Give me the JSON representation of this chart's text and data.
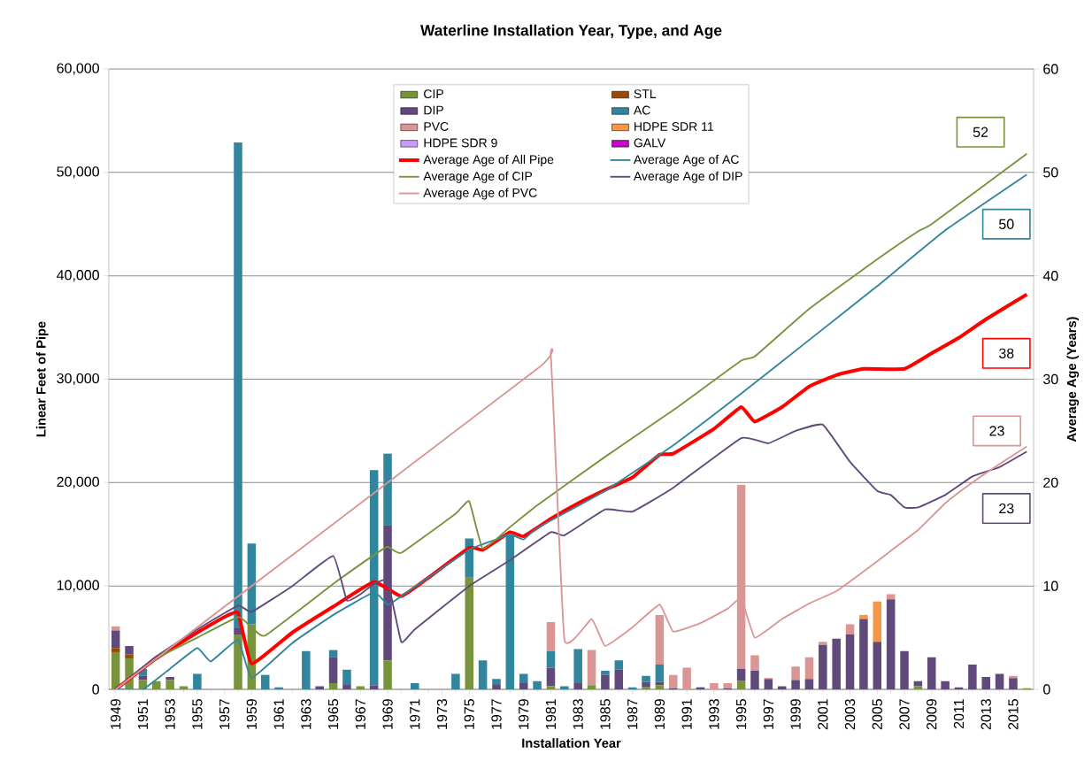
{
  "chart_data": {
    "type": "bar",
    "title": "Waterline Installation Year, Type, and Age",
    "xlabel": "Installation Year",
    "ylabel": "Linear Feet of Pipe",
    "y2label": "Average Age (Years)",
    "stacked": true,
    "grid": "y",
    "legend": "top",
    "x": [
      1949,
      1950,
      1951,
      1952,
      1953,
      1954,
      1955,
      1956,
      1957,
      1958,
      1959,
      1960,
      1961,
      1962,
      1963,
      1964,
      1965,
      1966,
      1967,
      1968,
      1969,
      1970,
      1971,
      1972,
      1973,
      1974,
      1975,
      1976,
      1977,
      1978,
      1979,
      1980,
      1981,
      1982,
      1983,
      1984,
      1985,
      1986,
      1987,
      1988,
      1989,
      1990,
      1991,
      1992,
      1993,
      1994,
      1995,
      1996,
      1997,
      1998,
      1999,
      2000,
      2001,
      2002,
      2003,
      2004,
      2005,
      2006,
      2007,
      2008,
      2009,
      2010,
      2011,
      2012,
      2013,
      2014,
      2015,
      2016
    ],
    "xlim": [
      1948.5,
      2016.5
    ],
    "xticks": [
      1949,
      1951,
      1953,
      1955,
      1957,
      1959,
      1961,
      1963,
      1965,
      1967,
      1969,
      1971,
      1973,
      1975,
      1977,
      1979,
      1981,
      1983,
      1985,
      1987,
      1989,
      1991,
      1993,
      1995,
      1997,
      1999,
      2001,
      2003,
      2005,
      2007,
      2009,
      2011,
      2013,
      2015
    ],
    "ylim": [
      0,
      60000
    ],
    "yticks": [
      0,
      {
        "value": 10000,
        "label": "10,000"
      },
      {
        "value": 20000,
        "label": "20,000"
      },
      {
        "value": 30000,
        "label": "30,000"
      },
      {
        "value": 40000,
        "label": "40,000"
      },
      {
        "value": 50000,
        "label": "50,000"
      },
      {
        "value": 60000,
        "label": "60,000"
      }
    ],
    "y2lim": [
      0,
      60
    ],
    "y2ticks": [
      0,
      10,
      20,
      30,
      40,
      50,
      60
    ],
    "series": [
      {
        "name": "CIP",
        "color": "#77933c",
        "values": [
          3600,
          3000,
          900,
          800,
          900,
          300,
          0,
          0,
          0,
          5300,
          6300,
          0,
          0,
          0,
          0,
          0,
          600,
          0,
          300,
          0,
          2800,
          0,
          0,
          0,
          0,
          0,
          10800,
          0,
          0,
          0,
          0,
          0,
          300,
          0,
          0,
          400,
          0,
          0,
          0,
          200,
          400,
          0,
          0,
          0,
          0,
          0,
          800,
          0,
          0,
          0,
          0,
          0,
          0,
          0,
          0,
          0,
          0,
          0,
          0,
          300,
          0,
          0,
          0,
          0,
          0,
          0,
          0,
          100
        ]
      },
      {
        "name": "STL",
        "color": "#984807",
        "values": [
          400,
          400,
          0,
          0,
          0,
          0,
          0,
          0,
          0,
          0,
          0,
          0,
          0,
          0,
          0,
          0,
          0,
          0,
          0,
          0,
          0,
          0,
          0,
          0,
          0,
          0,
          0,
          0,
          0,
          0,
          0,
          0,
          0,
          0,
          0,
          0,
          0,
          0,
          0,
          0,
          0,
          0,
          0,
          0,
          0,
          0,
          0,
          0,
          0,
          0,
          0,
          0,
          0,
          0,
          0,
          0,
          0,
          0,
          0,
          0,
          0,
          0,
          0,
          0,
          0,
          0,
          0,
          0
        ]
      },
      {
        "name": "DIP",
        "color": "#604a7b",
        "values": [
          1700,
          800,
          400,
          0,
          300,
          0,
          0,
          0,
          0,
          600,
          0,
          0,
          0,
          0,
          0,
          300,
          2500,
          500,
          0,
          400,
          13100,
          0,
          0,
          0,
          0,
          0,
          0,
          0,
          500,
          0,
          600,
          0,
          1800,
          0,
          600,
          0,
          1400,
          1900,
          0,
          500,
          300,
          100,
          0,
          200,
          0,
          100,
          1200,
          1800,
          1000,
          300,
          900,
          1000,
          4300,
          4900,
          5300,
          6800,
          4600,
          8700,
          3700,
          500,
          3100,
          800,
          200,
          2400,
          1200,
          1500,
          1100,
          0
        ]
      },
      {
        "name": "AC",
        "color": "#31859c",
        "values": [
          0,
          0,
          700,
          0,
          0,
          0,
          1500,
          0,
          0,
          47000,
          7800,
          1400,
          200,
          0,
          3700,
          0,
          700,
          1400,
          0,
          20800,
          6900,
          0,
          600,
          0,
          0,
          1500,
          3800,
          2800,
          500,
          14900,
          900,
          800,
          1600,
          300,
          3300,
          0,
          400,
          900,
          200,
          600,
          1700,
          0,
          0,
          0,
          0,
          0,
          0,
          0,
          0,
          0,
          0,
          0,
          0,
          0,
          0,
          0,
          0,
          0,
          0,
          0,
          0,
          0,
          0,
          0,
          0,
          0,
          0,
          0
        ]
      },
      {
        "name": "PVC",
        "color": "#d99694",
        "values": [
          400,
          0,
          0,
          0,
          0,
          0,
          0,
          0,
          0,
          0,
          0,
          0,
          0,
          0,
          0,
          0,
          0,
          0,
          0,
          0,
          0,
          0,
          0,
          0,
          0,
          0,
          0,
          0,
          0,
          0,
          0,
          0,
          2800,
          0,
          0,
          3400,
          0,
          0,
          0,
          0,
          4800,
          1300,
          2100,
          0,
          600,
          500,
          17800,
          1500,
          100,
          0,
          1300,
          2100,
          300,
          0,
          1000,
          0,
          0,
          500,
          0,
          0,
          0,
          0,
          0,
          0,
          0,
          0,
          200,
          0
        ]
      },
      {
        "name": "HDPE SDR 11",
        "color": "#f79646",
        "values": [
          0,
          0,
          0,
          0,
          0,
          0,
          0,
          0,
          0,
          0,
          0,
          0,
          0,
          0,
          0,
          0,
          0,
          0,
          0,
          0,
          0,
          0,
          0,
          0,
          0,
          0,
          0,
          0,
          0,
          0,
          0,
          0,
          0,
          0,
          0,
          0,
          0,
          0,
          0,
          0,
          0,
          0,
          0,
          0,
          0,
          0,
          0,
          0,
          0,
          0,
          0,
          0,
          0,
          0,
          0,
          400,
          3900,
          0,
          0,
          0,
          0,
          0,
          0,
          0,
          0,
          0,
          0,
          0
        ]
      },
      {
        "name": "HDPE SDR 9",
        "color": "#cc99ff",
        "values": [
          0,
          0,
          0,
          0,
          0,
          0,
          0,
          0,
          0,
          0,
          0,
          0,
          0,
          0,
          0,
          0,
          0,
          0,
          0,
          0,
          0,
          0,
          0,
          0,
          0,
          0,
          0,
          0,
          0,
          0,
          0,
          0,
          0,
          0,
          0,
          0,
          0,
          0,
          0,
          0,
          0,
          0,
          0,
          0,
          0,
          0,
          0,
          0,
          0,
          0,
          0,
          0,
          0,
          0,
          0,
          0,
          0,
          0,
          0,
          0,
          0,
          0,
          0,
          0,
          0,
          0,
          0,
          0
        ]
      },
      {
        "name": "GALV",
        "color": "#cc00cc",
        "values": [
          0,
          0,
          0,
          0,
          0,
          0,
          0,
          0,
          0,
          0,
          0,
          0,
          0,
          0,
          0,
          0,
          0,
          0,
          0,
          0,
          0,
          0,
          0,
          0,
          0,
          0,
          0,
          0,
          0,
          0,
          0,
          0,
          0,
          0,
          0,
          0,
          0,
          0,
          0,
          0,
          0,
          0,
          0,
          0,
          0,
          0,
          0,
          0,
          0,
          0,
          0,
          0,
          0,
          0,
          0,
          0,
          0,
          0,
          0,
          0,
          0,
          0,
          0,
          0,
          0,
          0,
          0,
          0
        ]
      },
      {
        "name": "Average Age of All Pipe",
        "type": "line",
        "axis": "y2",
        "color": "#ff0000",
        "x": [
          1949,
          1952,
          1955,
          1957,
          1958,
          1959,
          1962,
          1965,
          1968,
          1970,
          1972,
          1975,
          1976,
          1978,
          1979,
          1981,
          1983,
          1985,
          1987,
          1989,
          1990,
          1993,
          1995,
          1996,
          1998,
          2000,
          2002,
          2004,
          2007,
          2009,
          2011,
          2013,
          2016
        ],
        "values": [
          0,
          3,
          5.5,
          7,
          7.4,
          2.5,
          5.5,
          8,
          10.4,
          9,
          10.8,
          13.7,
          13.5,
          15.2,
          14.8,
          16.5,
          18,
          19.3,
          20.5,
          22.7,
          22.8,
          25.2,
          27.3,
          25.9,
          27.3,
          29.3,
          30.4,
          31,
          31,
          32.5,
          34,
          35.8,
          38.2
        ]
      },
      {
        "name": "Average Age of AC",
        "type": "line",
        "axis": "y2",
        "color": "#31859c",
        "x": [
          1949,
          1951,
          1953,
          1955,
          1956,
          1958,
          1959,
          1962,
          1965,
          1968,
          1969,
          1970,
          1975,
          1977,
          1978,
          1979,
          1980,
          1985,
          1990,
          1995,
          2000,
          2005,
          2010,
          2016
        ],
        "values": [
          0,
          0,
          2,
          4,
          2.7,
          4.8,
          1.1,
          4.5,
          7.2,
          9.4,
          8.2,
          9,
          13.5,
          14.5,
          15,
          14.5,
          15.6,
          19.2,
          23.6,
          28.6,
          33.8,
          39,
          44.4,
          49.8
        ]
      },
      {
        "name": "Average Age of CIP",
        "type": "line",
        "axis": "y2",
        "color": "#77933c",
        "x": [
          1949,
          1952,
          1955,
          1958,
          1959,
          1960,
          1965,
          1968,
          1969,
          1970,
          1974,
          1975,
          1976,
          1978,
          1980,
          1985,
          1990,
          1995,
          1996,
          2000,
          2005,
          2008,
          2009,
          2016
        ],
        "values": [
          0,
          3,
          5,
          7,
          6,
          5.2,
          10.2,
          13,
          13.8,
          13.2,
          17,
          18.2,
          13.6,
          15.7,
          17.8,
          22.5,
          27,
          31.8,
          32.2,
          36.8,
          41.6,
          44.3,
          45,
          51.8
        ]
      },
      {
        "name": "Average Age of DIP",
        "type": "line",
        "axis": "y2",
        "color": "#604a7b",
        "x": [
          1949,
          1952,
          1955,
          1958,
          1959,
          1962,
          1965,
          1966,
          1967,
          1968,
          1969,
          1970,
          1971,
          1975,
          1978,
          1981,
          1982,
          1985,
          1987,
          1990,
          1995,
          1997,
          1999,
          2001,
          2003,
          2005,
          2006,
          2007,
          2008,
          2010,
          2012,
          2014,
          2016
        ],
        "values": [
          0,
          3.2,
          5.8,
          8.1,
          7.5,
          10,
          12.9,
          8.6,
          9.2,
          10.2,
          10.5,
          4.6,
          5.8,
          10,
          12.5,
          15.2,
          14.9,
          17.4,
          17.2,
          19.5,
          24.3,
          23.8,
          25,
          25.6,
          22,
          19.2,
          18.8,
          17.6,
          17.6,
          18.8,
          20.6,
          21.5,
          23
        ]
      },
      {
        "name": "Average Age of PVC",
        "type": "line",
        "axis": "y2",
        "color": "#d99694",
        "x": [
          1949,
          1980,
          1981,
          1982,
          1984,
          1985,
          1987,
          1989,
          1990,
          1992,
          1994,
          1995,
          1996,
          1998,
          2000,
          2002,
          2004,
          2006,
          2008,
          2010,
          2012,
          2014,
          2016
        ],
        "values": [
          0,
          31,
          32.2,
          4.8,
          6.8,
          4.2,
          6,
          8.2,
          5.6,
          6.4,
          7.8,
          8.8,
          5,
          6.8,
          8.3,
          9.5,
          11.4,
          13.4,
          15.4,
          18,
          20,
          21.8,
          23.5
        ]
      }
    ],
    "annotations": [
      "52",
      "50",
      "38",
      "23",
      "23"
    ]
  }
}
